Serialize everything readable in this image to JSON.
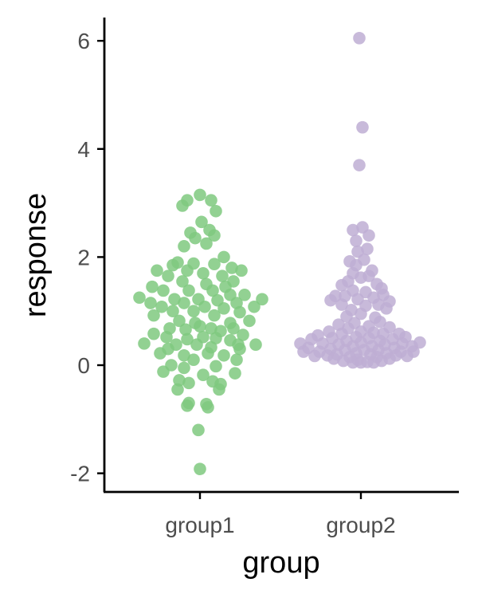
{
  "chart_data": {
    "type": "scatter",
    "subtype": "beeswarm",
    "title": "",
    "xlabel": "group",
    "ylabel": "response",
    "categories": [
      "group1",
      "group2"
    ],
    "ylim": [
      -2.4,
      6.5
    ],
    "yticks": [
      -2,
      0,
      2,
      4,
      6
    ],
    "grid": false,
    "legend": "none",
    "series": [
      {
        "name": "group1",
        "color": "#7fc97f",
        "points": [
          {
            "x": 0.0,
            "y": 3.15
          },
          {
            "x": -0.08,
            "y": 3.05
          },
          {
            "x": 0.07,
            "y": 3.05
          },
          {
            "x": -0.11,
            "y": 2.95
          },
          {
            "x": 0.1,
            "y": 2.85
          },
          {
            "x": 0.01,
            "y": 2.65
          },
          {
            "x": 0.06,
            "y": 2.5
          },
          {
            "x": -0.06,
            "y": 2.45
          },
          {
            "x": 0.09,
            "y": 2.4
          },
          {
            "x": -0.03,
            "y": 2.35
          },
          {
            "x": 0.04,
            "y": 2.25
          },
          {
            "x": -0.1,
            "y": 2.2
          },
          {
            "x": 0.15,
            "y": 2.0
          },
          {
            "x": -0.14,
            "y": 1.9
          },
          {
            "x": -0.04,
            "y": 1.88
          },
          {
            "x": 0.09,
            "y": 1.87
          },
          {
            "x": -0.17,
            "y": 1.85
          },
          {
            "x": 0.2,
            "y": 1.8
          },
          {
            "x": -0.27,
            "y": 1.75
          },
          {
            "x": 0.26,
            "y": 1.75
          },
          {
            "x": -0.08,
            "y": 1.75
          },
          {
            "x": 0.02,
            "y": 1.7
          },
          {
            "x": 0.14,
            "y": 1.65
          },
          {
            "x": -0.2,
            "y": 1.65
          },
          {
            "x": 0.21,
            "y": 1.55
          },
          {
            "x": -0.11,
            "y": 1.55
          },
          {
            "x": 0.04,
            "y": 1.5
          },
          {
            "x": -0.3,
            "y": 1.45
          },
          {
            "x": 0.16,
            "y": 1.45
          },
          {
            "x": -0.23,
            "y": 1.38
          },
          {
            "x": -0.07,
            "y": 1.38
          },
          {
            "x": 0.08,
            "y": 1.38
          },
          {
            "x": 0.19,
            "y": 1.3
          },
          {
            "x": 0.28,
            "y": 1.3
          },
          {
            "x": -0.38,
            "y": 1.25
          },
          {
            "x": 0.39,
            "y": 1.22
          },
          {
            "x": -0.16,
            "y": 1.22
          },
          {
            "x": -0.01,
            "y": 1.22
          },
          {
            "x": 0.11,
            "y": 1.2
          },
          {
            "x": -0.31,
            "y": 1.15
          },
          {
            "x": -0.1,
            "y": 1.15
          },
          {
            "x": 0.23,
            "y": 1.15
          },
          {
            "x": 0.34,
            "y": 1.08
          },
          {
            "x": -0.24,
            "y": 1.08
          },
          {
            "x": 0.03,
            "y": 1.08
          },
          {
            "x": 0.15,
            "y": 1.05
          },
          {
            "x": -0.04,
            "y": 1.0
          },
          {
            "x": -0.17,
            "y": 1.0
          },
          {
            "x": 0.25,
            "y": 0.98
          },
          {
            "x": -0.29,
            "y": 0.92
          },
          {
            "x": 0.09,
            "y": 0.92
          },
          {
            "x": -0.13,
            "y": 0.82
          },
          {
            "x": 0.31,
            "y": 0.82
          },
          {
            "x": -0.03,
            "y": 0.78
          },
          {
            "x": 0.19,
            "y": 0.78
          },
          {
            "x": 0.0,
            "y": 0.72
          },
          {
            "x": 0.07,
            "y": 0.68
          },
          {
            "x": -0.19,
            "y": 0.68
          },
          {
            "x": 0.21,
            "y": 0.68
          },
          {
            "x": -0.09,
            "y": 0.66
          },
          {
            "x": 0.13,
            "y": 0.63
          },
          {
            "x": -0.29,
            "y": 0.58
          },
          {
            "x": 0.27,
            "y": 0.56
          },
          {
            "x": -0.21,
            "y": 0.52
          },
          {
            "x": 0.02,
            "y": 0.52
          },
          {
            "x": 0.1,
            "y": 0.5
          },
          {
            "x": -0.08,
            "y": 0.48
          },
          {
            "x": 0.19,
            "y": 0.46
          },
          {
            "x": -0.35,
            "y": 0.4
          },
          {
            "x": 0.35,
            "y": 0.38
          },
          {
            "x": -0.15,
            "y": 0.38
          },
          {
            "x": 0.24,
            "y": 0.38
          },
          {
            "x": -0.02,
            "y": 0.38
          },
          {
            "x": 0.07,
            "y": 0.33
          },
          {
            "x": -0.2,
            "y": 0.3
          },
          {
            "x": 0.25,
            "y": 0.3
          },
          {
            "x": -0.25,
            "y": 0.22
          },
          {
            "x": 0.05,
            "y": 0.22
          },
          {
            "x": 0.15,
            "y": 0.18
          },
          {
            "x": -0.1,
            "y": 0.18
          },
          {
            "x": -0.04,
            "y": 0.1
          },
          {
            "x": 0.23,
            "y": 0.1
          },
          {
            "x": -0.18,
            "y": 0.0
          },
          {
            "x": 0.1,
            "y": -0.02
          },
          {
            "x": -0.1,
            "y": -0.05
          },
          {
            "x": -0.23,
            "y": -0.12
          },
          {
            "x": 0.22,
            "y": -0.15
          },
          {
            "x": 0.02,
            "y": -0.18
          },
          {
            "x": -0.13,
            "y": -0.28
          },
          {
            "x": 0.08,
            "y": -0.3
          },
          {
            "x": -0.07,
            "y": -0.33
          },
          {
            "x": 0.13,
            "y": -0.35
          },
          {
            "x": -0.14,
            "y": -0.45
          },
          {
            "x": 0.12,
            "y": -0.45
          },
          {
            "x": -0.07,
            "y": -0.7
          },
          {
            "x": 0.04,
            "y": -0.72
          },
          {
            "x": -0.08,
            "y": -0.75
          },
          {
            "x": 0.05,
            "y": -0.78
          },
          {
            "x": -0.01,
            "y": -1.2
          },
          {
            "x": 0.0,
            "y": -1.92
          }
        ]
      },
      {
        "name": "group2",
        "color": "#beaed4",
        "points": [
          {
            "x": -0.01,
            "y": 6.05
          },
          {
            "x": 0.01,
            "y": 4.4
          },
          {
            "x": -0.01,
            "y": 3.7
          },
          {
            "x": 0.01,
            "y": 2.55
          },
          {
            "x": -0.05,
            "y": 2.5
          },
          {
            "x": 0.05,
            "y": 2.4
          },
          {
            "x": -0.03,
            "y": 2.3
          },
          {
            "x": 0.04,
            "y": 2.15
          },
          {
            "x": -0.02,
            "y": 2.1
          },
          {
            "x": 0.02,
            "y": 1.95
          },
          {
            "x": -0.07,
            "y": 1.92
          },
          {
            "x": -0.03,
            "y": 1.85
          },
          {
            "x": 0.07,
            "y": 1.75
          },
          {
            "x": -0.05,
            "y": 1.7
          },
          {
            "x": 0.05,
            "y": 1.65
          },
          {
            "x": 0.0,
            "y": 1.62
          },
          {
            "x": -0.08,
            "y": 1.55
          },
          {
            "x": 0.1,
            "y": 1.5
          },
          {
            "x": -0.12,
            "y": 1.48
          },
          {
            "x": 0.13,
            "y": 1.42
          },
          {
            "x": -0.05,
            "y": 1.38
          },
          {
            "x": 0.03,
            "y": 1.35
          },
          {
            "x": 0.14,
            "y": 1.3
          },
          {
            "x": -0.16,
            "y": 1.28
          },
          {
            "x": -0.1,
            "y": 1.28
          },
          {
            "x": 0.08,
            "y": 1.25
          },
          {
            "x": -0.02,
            "y": 1.22
          },
          {
            "x": -0.19,
            "y": 1.2
          },
          {
            "x": 0.18,
            "y": 1.18
          },
          {
            "x": 0.11,
            "y": 1.12
          },
          {
            "x": -0.12,
            "y": 1.12
          },
          {
            "x": 0.03,
            "y": 1.1
          },
          {
            "x": 0.16,
            "y": 1.05
          },
          {
            "x": -0.06,
            "y": 1.02
          },
          {
            "x": 0.0,
            "y": 0.95
          },
          {
            "x": -0.09,
            "y": 0.9
          },
          {
            "x": 0.09,
            "y": 0.88
          },
          {
            "x": 0.12,
            "y": 0.8
          },
          {
            "x": -0.04,
            "y": 0.78
          },
          {
            "x": -0.14,
            "y": 0.75
          },
          {
            "x": 0.05,
            "y": 0.72
          },
          {
            "x": 0.18,
            "y": 0.7
          },
          {
            "x": -0.08,
            "y": 0.68
          },
          {
            "x": -0.2,
            "y": 0.62
          },
          {
            "x": 0.0,
            "y": 0.62
          },
          {
            "x": 0.08,
            "y": 0.6
          },
          {
            "x": -0.12,
            "y": 0.58
          },
          {
            "x": 0.14,
            "y": 0.58
          },
          {
            "x": 0.24,
            "y": 0.58
          },
          {
            "x": -0.27,
            "y": 0.55
          },
          {
            "x": -0.03,
            "y": 0.52
          },
          {
            "x": 0.28,
            "y": 0.52
          },
          {
            "x": 0.05,
            "y": 0.5
          },
          {
            "x": -0.18,
            "y": 0.5
          },
          {
            "x": -0.31,
            "y": 0.48
          },
          {
            "x": 0.2,
            "y": 0.48
          },
          {
            "x": -0.09,
            "y": 0.45
          },
          {
            "x": 0.12,
            "y": 0.45
          },
          {
            "x": 0.0,
            "y": 0.42
          },
          {
            "x": 0.37,
            "y": 0.42
          },
          {
            "x": -0.38,
            "y": 0.4
          },
          {
            "x": -0.24,
            "y": 0.4
          },
          {
            "x": 0.26,
            "y": 0.4
          },
          {
            "x": -0.14,
            "y": 0.38
          },
          {
            "x": 0.15,
            "y": 0.38
          },
          {
            "x": -0.05,
            "y": 0.35
          },
          {
            "x": 0.07,
            "y": 0.35
          },
          {
            "x": 0.32,
            "y": 0.35
          },
          {
            "x": -0.33,
            "y": 0.32
          },
          {
            "x": 0.21,
            "y": 0.32
          },
          {
            "x": -0.19,
            "y": 0.3
          },
          {
            "x": -0.1,
            "y": 0.28
          },
          {
            "x": 0.02,
            "y": 0.28
          },
          {
            "x": 0.11,
            "y": 0.28
          },
          {
            "x": -0.36,
            "y": 0.25
          },
          {
            "x": 0.33,
            "y": 0.25
          },
          {
            "x": -0.26,
            "y": 0.25
          },
          {
            "x": 0.25,
            "y": 0.25
          },
          {
            "x": -0.03,
            "y": 0.22
          },
          {
            "x": 0.16,
            "y": 0.22
          },
          {
            "x": -0.15,
            "y": 0.2
          },
          {
            "x": 0.06,
            "y": 0.2
          },
          {
            "x": -0.21,
            "y": 0.18
          },
          {
            "x": 0.22,
            "y": 0.18
          },
          {
            "x": -0.29,
            "y": 0.17
          },
          {
            "x": 0.29,
            "y": 0.17
          },
          {
            "x": -0.07,
            "y": 0.15
          },
          {
            "x": 0.1,
            "y": 0.15
          },
          {
            "x": -0.17,
            "y": 0.12
          },
          {
            "x": 0.18,
            "y": 0.12
          },
          {
            "x": -0.02,
            "y": 0.1
          },
          {
            "x": -0.11,
            "y": 0.08
          },
          {
            "x": 0.13,
            "y": 0.08
          },
          {
            "x": 0.04,
            "y": 0.06
          },
          {
            "x": -0.05,
            "y": 0.05
          },
          {
            "x": 0.0,
            "y": 0.05
          },
          {
            "x": 0.08,
            "y": 0.05
          }
        ]
      }
    ]
  }
}
